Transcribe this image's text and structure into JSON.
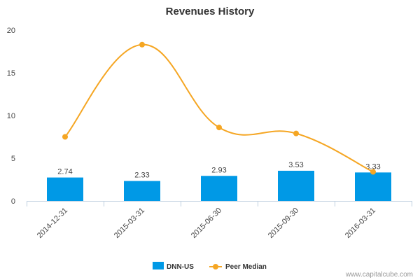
{
  "chart_data": {
    "type": "bar",
    "title": "Revenues History",
    "categories": [
      "2014-12-31",
      "2015-03-31",
      "2015-06-30",
      "2015-09-30",
      "2016-03-31"
    ],
    "series": [
      {
        "name": "DNN-US",
        "type": "bar",
        "color": "#0099e6",
        "values": [
          2.74,
          2.33,
          2.93,
          3.53,
          3.33
        ],
        "labels": [
          "2.74",
          "2.33",
          "2.93",
          "3.53",
          "3.33"
        ]
      },
      {
        "name": "Peer Median",
        "type": "line",
        "color": "#f5a623",
        "values": [
          7.5,
          18.3,
          8.6,
          7.9,
          3.4
        ]
      }
    ],
    "ylim": [
      0,
      20
    ],
    "yticks": [
      "0",
      "5",
      "10",
      "15",
      "20"
    ],
    "xlabel": "",
    "ylabel": "",
    "grid": false,
    "legend": "bottom-center"
  },
  "credit": "www.capitalcube.com"
}
